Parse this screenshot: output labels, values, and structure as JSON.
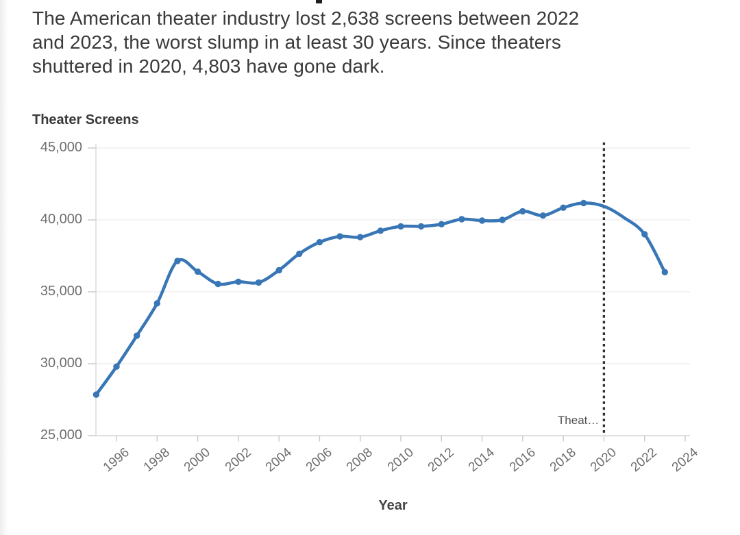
{
  "page": {
    "intro_lines": [
      "The American theater industry lost 2,638 screens between 2022",
      "and 2023, the worst slump in at least 30 years. Since theaters",
      "shuttered in 2020, 4,803 have gone dark."
    ]
  },
  "chart": {
    "title": "Theater Screens",
    "x_axis_title": "Year",
    "annotation_label": "Theat…"
  },
  "chart_data": {
    "type": "line",
    "title": "Theater Screens",
    "xlabel": "Year",
    "ylabel": "Theater Screens",
    "ylim": [
      25000,
      45000
    ],
    "xlim": [
      1995,
      2024
    ],
    "grid": true,
    "legend": "none",
    "y_tick_values": [
      45000,
      40000,
      35000,
      30000,
      25000
    ],
    "x_tick_labels": [
      "1996",
      "1998",
      "2000",
      "2002",
      "2004",
      "2006",
      "2008",
      "2010",
      "2012",
      "2014",
      "2016",
      "2018",
      "2020",
      "2022",
      "2024"
    ],
    "colors": {
      "line": "#3876b6",
      "grid": "#ececec",
      "axis": "#d6d6d6",
      "tick": "#c9c9c9",
      "tick_label": "#6e6e6e",
      "vline": "#2e2e2e"
    },
    "series": [
      {
        "name": "Theater Screens",
        "color": "#3876b6",
        "points": [
          {
            "year": 1995,
            "value": 27850
          },
          {
            "year": 1996,
            "value": 29800
          },
          {
            "year": 1997,
            "value": 31950
          },
          {
            "year": 1998,
            "value": 34200
          },
          {
            "year": 1999,
            "value": 37150
          },
          {
            "year": 2000,
            "value": 36400
          },
          {
            "year": 2001,
            "value": 35550
          },
          {
            "year": 2002,
            "value": 35700
          },
          {
            "year": 2003,
            "value": 35650
          },
          {
            "year": 2004,
            "value": 36500
          },
          {
            "year": 2005,
            "value": 37650
          },
          {
            "year": 2006,
            "value": 38450
          },
          {
            "year": 2007,
            "value": 38850
          },
          {
            "year": 2008,
            "value": 38800
          },
          {
            "year": 2009,
            "value": 39250
          },
          {
            "year": 2010,
            "value": 39550
          },
          {
            "year": 2011,
            "value": 39550
          },
          {
            "year": 2012,
            "value": 39700
          },
          {
            "year": 2013,
            "value": 40050
          },
          {
            "year": 2014,
            "value": 39950
          },
          {
            "year": 2015,
            "value": 40000
          },
          {
            "year": 2016,
            "value": 40600
          },
          {
            "year": 2017,
            "value": 40300
          },
          {
            "year": 2018,
            "value": 40850
          },
          {
            "year": 2019,
            "value": 41172
          },
          {
            "year": 2020,
            "value": 40950,
            "interpolated": true
          },
          {
            "year": 2021,
            "value": 40150,
            "interpolated": true
          },
          {
            "year": 2022,
            "value": 39007
          },
          {
            "year": 2023,
            "value": 36369
          }
        ]
      }
    ],
    "annotations": [
      {
        "type": "vline",
        "x": 2020,
        "style": "dotted",
        "color": "#2e2e2e",
        "label": "Theat…"
      }
    ]
  }
}
